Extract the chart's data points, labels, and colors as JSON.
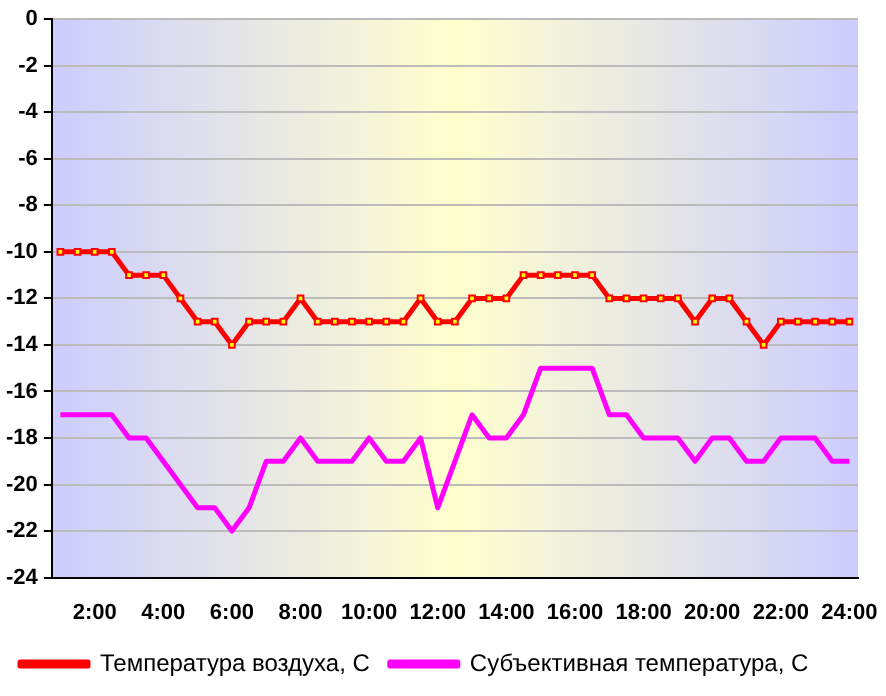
{
  "chart_data": {
    "type": "line",
    "categories": [
      null,
      null,
      "2:00",
      null,
      null,
      null,
      "4:00",
      null,
      null,
      null,
      "6:00",
      null,
      null,
      null,
      "8:00",
      null,
      null,
      null,
      "10:00",
      null,
      null,
      null,
      "12:00",
      null,
      null,
      null,
      "14:00",
      null,
      null,
      null,
      "16:00",
      null,
      null,
      null,
      "18:00",
      null,
      null,
      null,
      "20:00",
      null,
      null,
      null,
      "22:00",
      null,
      null,
      null,
      "24:00"
    ],
    "series": [
      {
        "name": "Температура воздуха, С",
        "color": "#ff0000",
        "marker": "square",
        "values": [
          -10,
          -10,
          -10,
          -10,
          -11,
          -11,
          -11,
          -12,
          -13,
          -13,
          -14,
          -13,
          -13,
          -13,
          -12,
          -13,
          -13,
          -13,
          -13,
          -13,
          -13,
          -12,
          -13,
          -13,
          -12,
          -12,
          -12,
          -11,
          -11,
          -11,
          -11,
          -11,
          -12,
          -12,
          -12,
          -12,
          -12,
          -13,
          -12,
          -12,
          -13,
          -14,
          -13,
          -13,
          -13,
          -13,
          -13
        ]
      },
      {
        "name": "Субъективная температура, С",
        "color": "#ff00ff",
        "marker": "none",
        "values": [
          -17,
          -17,
          -17,
          -17,
          -18,
          -18,
          -19,
          -20,
          -21,
          -21,
          -22,
          -21,
          -19,
          -19,
          -18,
          -19,
          -19,
          -19,
          -18,
          -19,
          -19,
          -18,
          -21,
          -19,
          -17,
          -18,
          -18,
          -17,
          -15,
          -15,
          -15,
          -15,
          -17,
          -17,
          -18,
          -18,
          -18,
          -19,
          -18,
          -18,
          -19,
          -19,
          -18,
          -18,
          -18,
          -19,
          -19
        ]
      }
    ],
    "ylim": [
      -24,
      0
    ],
    "yticks": [
      -24,
      -22,
      -20,
      -18,
      -16,
      -14,
      -12,
      -10,
      -8,
      -6,
      -4,
      -2,
      0
    ],
    "grid": "y",
    "legend": "bottom"
  }
}
